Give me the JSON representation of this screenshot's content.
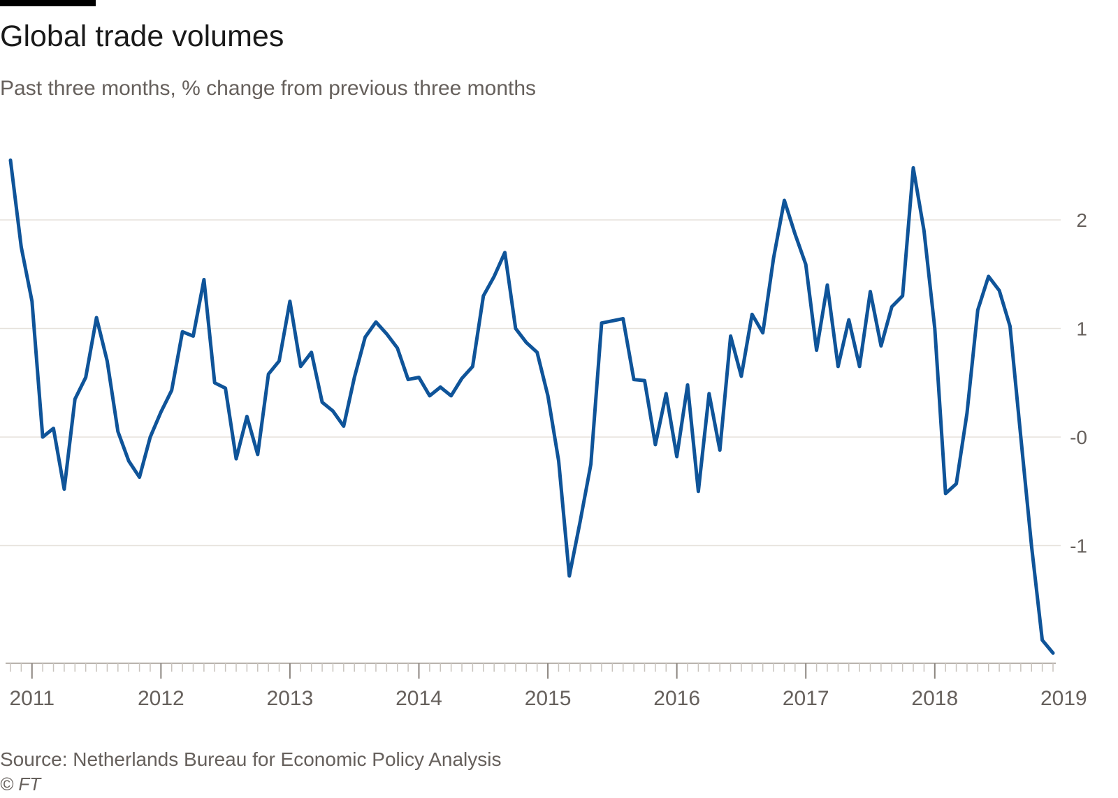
{
  "title": "Global trade volumes",
  "subtitle": "Past three months, % change from previous three months",
  "source": "Source: Netherlands Bureau for Economic Policy Analysis",
  "copyright": "© FT",
  "chart_data": {
    "type": "line",
    "x_start": "2010-11",
    "x_labels": [
      "2011",
      "2012",
      "2013",
      "2014",
      "2015",
      "2016",
      "2017",
      "2018",
      "2019"
    ],
    "y_ticks": [
      {
        "value": 2,
        "label": "2"
      },
      {
        "value": 1,
        "label": "1"
      },
      {
        "value": 0,
        "label": "-0"
      },
      {
        "value": -1,
        "label": "-1"
      }
    ],
    "ylim": [
      -2,
      2.6
    ],
    "grid": true,
    "y_axis_side": "right",
    "color": "#0f5499",
    "values": [
      2.55,
      1.75,
      1.25,
      0.0,
      0.08,
      -0.48,
      0.35,
      0.55,
      1.1,
      0.7,
      0.05,
      -0.22,
      -0.37,
      0.0,
      0.23,
      0.43,
      0.97,
      0.93,
      1.45,
      0.5,
      0.45,
      -0.2,
      0.19,
      -0.16,
      0.58,
      0.7,
      1.25,
      0.65,
      0.78,
      0.32,
      0.24,
      0.1,
      0.55,
      0.92,
      1.06,
      0.95,
      0.82,
      0.53,
      0.55,
      0.38,
      0.46,
      0.38,
      0.54,
      0.65,
      1.3,
      1.48,
      1.7,
      1.0,
      0.87,
      0.78,
      0.38,
      -0.22,
      -1.28,
      -0.78,
      -0.25,
      1.05,
      1.07,
      1.09,
      0.53,
      0.52,
      -0.07,
      0.4,
      -0.18,
      0.48,
      -0.5,
      0.4,
      -0.12,
      0.93,
      0.56,
      1.13,
      0.96,
      1.65,
      2.18,
      1.87,
      1.59,
      0.8,
      1.4,
      0.65,
      1.08,
      0.65,
      1.34,
      0.84,
      1.2,
      1.3,
      2.48,
      1.9,
      1.0,
      -0.52,
      -0.43,
      0.22,
      1.17,
      1.48,
      1.35,
      1.02,
      0.0,
      -1.0,
      -1.87,
      -1.99
    ]
  }
}
